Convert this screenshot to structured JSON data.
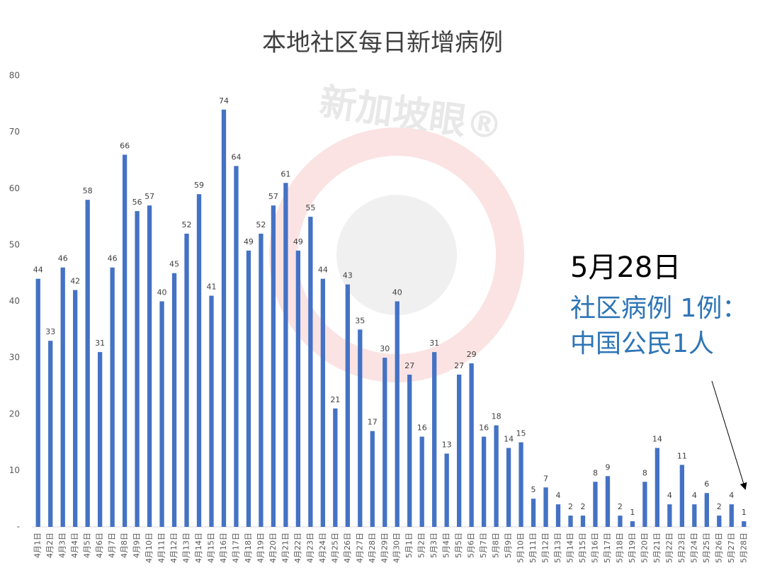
{
  "chart_data": {
    "type": "bar",
    "title": "本地社区每日新增病例",
    "watermark": "新加坡眼®",
    "categories": [
      "4月1日",
      "4月2日",
      "4月3日",
      "4月4日",
      "4月5日",
      "4月6日",
      "4月7日",
      "4月8日",
      "4月9日",
      "4月10日",
      "4月11日",
      "4月12日",
      "4月13日",
      "4月14日",
      "4月15日",
      "4月16日",
      "4月17日",
      "4月18日",
      "4月19日",
      "4月20日",
      "4月21日",
      "4月22日",
      "4月23日",
      "4月24日",
      "4月25日",
      "4月26日",
      "4月27日",
      "4月28日",
      "4月29日",
      "4月30日",
      "5月1日",
      "5月2日",
      "5月3日",
      "5月4日",
      "5月5日",
      "5月6日",
      "5月7日",
      "5月8日",
      "5月9日",
      "5月10日",
      "5月11日",
      "5月12日",
      "5月13日",
      "5月14日",
      "5月15日",
      "5月16日",
      "5月17日",
      "5月18日",
      "5月19日",
      "5月20日",
      "5月21日",
      "5月22日",
      "5月23日",
      "5月24日",
      "5月25日",
      "5月26日",
      "5月27日",
      "5月28日"
    ],
    "values": [
      44,
      33,
      46,
      42,
      58,
      31,
      46,
      66,
      56,
      57,
      40,
      45,
      52,
      59,
      41,
      74,
      64,
      49,
      52,
      57,
      61,
      49,
      55,
      44,
      21,
      43,
      35,
      17,
      30,
      40,
      27,
      16,
      31,
      13,
      27,
      29,
      16,
      18,
      14,
      15,
      5,
      7,
      4,
      2,
      2,
      8,
      9,
      2,
      1,
      8,
      14,
      4,
      11,
      4,
      6,
      2,
      4,
      1
    ],
    "color": "#4472c4",
    "ylim": [
      0,
      80
    ],
    "yticks": [
      {
        "value": 0,
        "label": "-"
      },
      10,
      20,
      30,
      40,
      50,
      60,
      70,
      80
    ],
    "annotations": [
      "5月28日",
      "社区病例 1例：",
      "中国公民1人"
    ]
  }
}
